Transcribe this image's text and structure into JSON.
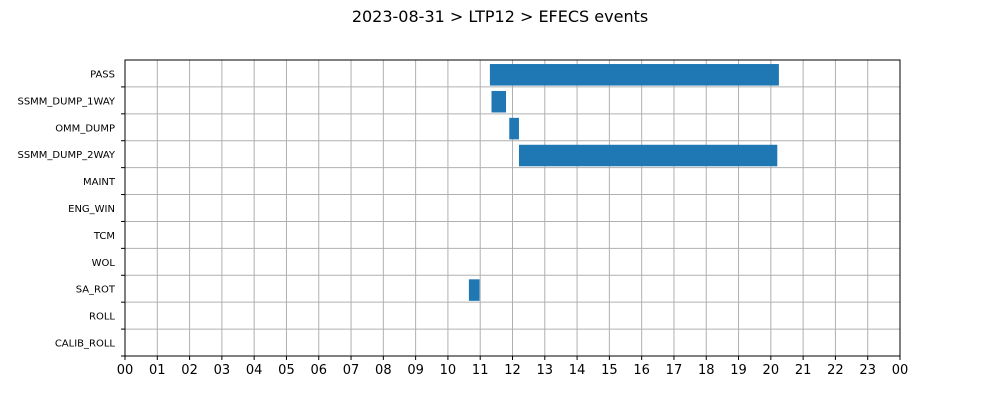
{
  "chart_data": {
    "type": "gantt",
    "title": "2023-08-31 > LTP12 > EFECS events",
    "xlabel": "",
    "ylabel": "",
    "x_unit": "hour of day",
    "xlim": [
      0,
      24
    ],
    "x_ticks": [
      "00",
      "01",
      "02",
      "03",
      "04",
      "05",
      "06",
      "07",
      "08",
      "09",
      "10",
      "11",
      "12",
      "13",
      "14",
      "15",
      "16",
      "17",
      "18",
      "19",
      "20",
      "21",
      "22",
      "23",
      "00"
    ],
    "grid": true,
    "bar_color": "#1f77b4",
    "categories": [
      "PASS",
      "SSMM_DUMP_1WAY",
      "OMM_DUMP",
      "SSMM_DUMP_2WAY",
      "MAINT",
      "ENG_WIN",
      "TCM",
      "WOL",
      "SA_ROT",
      "ROLL",
      "CALIB_ROLL"
    ],
    "events": [
      {
        "category": "PASS",
        "start": 11.3,
        "end": 20.25
      },
      {
        "category": "SSMM_DUMP_1WAY",
        "start": 11.35,
        "end": 11.8
      },
      {
        "category": "OMM_DUMP",
        "start": 11.9,
        "end": 12.2
      },
      {
        "category": "SSMM_DUMP_2WAY",
        "start": 12.2,
        "end": 20.2
      },
      {
        "category": "SA_ROT",
        "start": 10.65,
        "end": 10.98
      }
    ]
  }
}
